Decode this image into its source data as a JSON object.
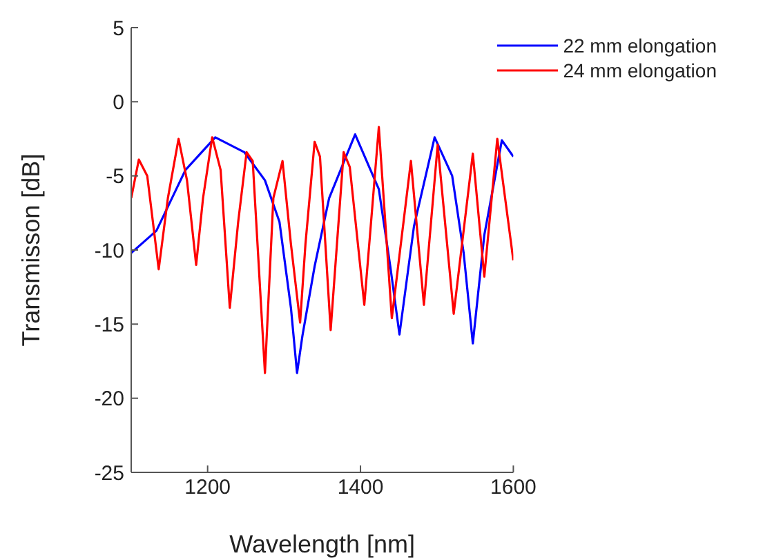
{
  "chart_data": {
    "type": "line",
    "xlabel": "Wavelength [nm]",
    "ylabel": "Transmisson [dB]",
    "xlim": [
      1100,
      1600
    ],
    "xticks": [
      1200,
      1400,
      1600
    ],
    "ylim": [
      -25,
      5
    ],
    "yticks": [
      5,
      0,
      -5,
      -10,
      -15,
      -20,
      -25
    ],
    "grid": false,
    "legend": "top right",
    "marker": "none",
    "line_style": "solid",
    "series": [
      {
        "name": "22 mm elongation",
        "color": "#0000ff",
        "x": [
          1100,
          1133,
          1171,
          1210,
          1248,
          1275,
          1294,
          1309,
          1317,
          1324,
          1340,
          1359,
          1393,
          1424,
          1439,
          1451,
          1470,
          1497,
          1520,
          1535,
          1547,
          1562,
          1585,
          1600
        ],
        "values": [
          -10.2,
          -8.7,
          -4.6,
          -2.4,
          -3.4,
          -5.3,
          -8.1,
          -13.9,
          -18.3,
          -15.8,
          -11.1,
          -6.5,
          -2.2,
          -5.9,
          -11.1,
          -15.7,
          -8.4,
          -2.4,
          -5.0,
          -10.2,
          -16.3,
          -9.0,
          -2.6,
          -3.7
        ]
      },
      {
        "name": "24 mm elongation",
        "color": "#ff0000",
        "x": [
          1100,
          1110,
          1121,
          1136,
          1148,
          1162,
          1173,
          1185,
          1194,
          1206,
          1217,
          1229,
          1240,
          1251,
          1259,
          1275,
          1286,
          1298,
          1309,
          1321,
          1328,
          1340,
          1347,
          1361,
          1378,
          1386,
          1405,
          1424,
          1441,
          1466,
          1483,
          1501,
          1522,
          1547,
          1562,
          1579,
          1600
        ],
        "values": [
          -6.5,
          -3.9,
          -5.0,
          -11.3,
          -6.5,
          -2.5,
          -5.3,
          -11.0,
          -6.5,
          -2.4,
          -4.6,
          -13.9,
          -8.1,
          -3.4,
          -4.0,
          -18.3,
          -6.5,
          -4.0,
          -9.6,
          -14.9,
          -9.6,
          -2.7,
          -3.7,
          -15.4,
          -3.4,
          -4.4,
          -13.7,
          -1.7,
          -14.6,
          -4.0,
          -13.7,
          -2.9,
          -14.3,
          -3.5,
          -11.8,
          -2.5,
          -10.7
        ]
      }
    ]
  }
}
